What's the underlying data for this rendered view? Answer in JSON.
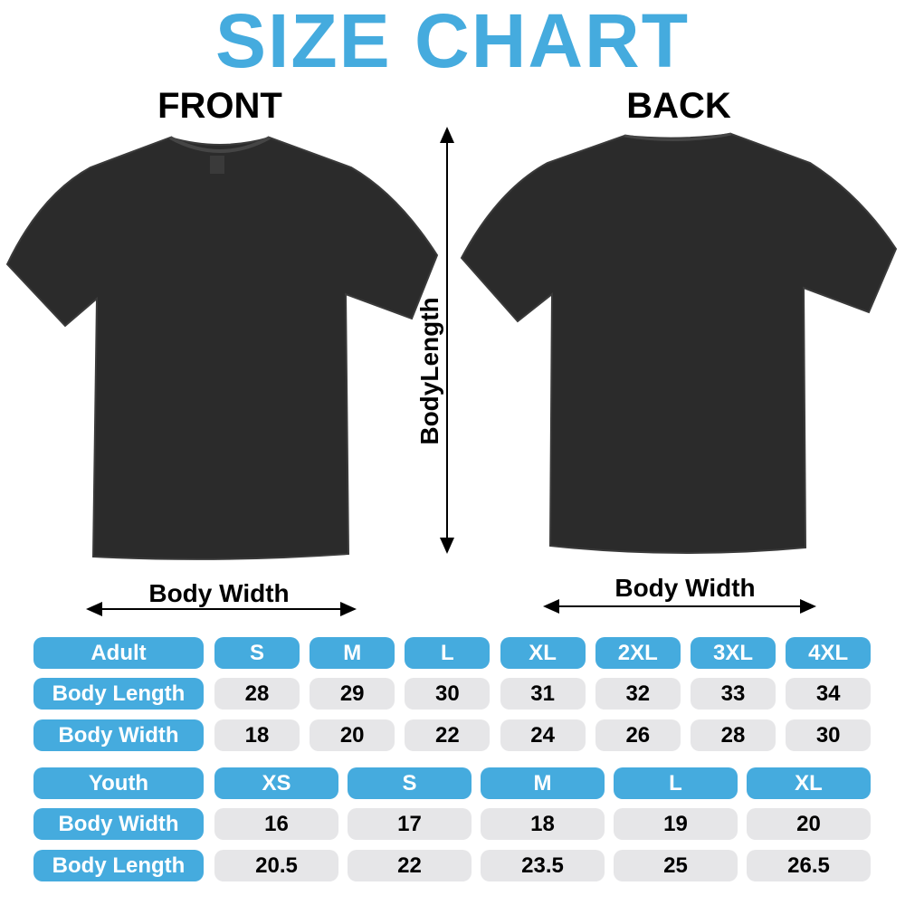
{
  "title": "SIZE CHART",
  "colors": {
    "accent": "#45abde",
    "cell_gray": "#e6e6e8",
    "shirt": "#2b2b2b"
  },
  "front_label": "FRONT",
  "back_label": "BACK",
  "body_length_label": "BodyLength",
  "body_width_label_front": "Body Width",
  "body_width_label_back": "Body Width",
  "adult": {
    "header": "Adult",
    "sizes": [
      "S",
      "M",
      "L",
      "XL",
      "2XL",
      "3XL",
      "4XL"
    ],
    "rows": [
      {
        "label": "Body Length",
        "values": [
          "28",
          "29",
          "30",
          "31",
          "32",
          "33",
          "34"
        ]
      },
      {
        "label": "Body Width",
        "values": [
          "18",
          "20",
          "22",
          "24",
          "26",
          "28",
          "30"
        ]
      }
    ]
  },
  "youth": {
    "header": "Youth",
    "sizes": [
      "XS",
      "S",
      "M",
      "L",
      "XL"
    ],
    "rows": [
      {
        "label": "Body Width",
        "values": [
          "16",
          "17",
          "18",
          "19",
          "20"
        ]
      },
      {
        "label": "Body Length",
        "values": [
          "20.5",
          "22",
          "23.5",
          "25",
          "26.5"
        ]
      }
    ]
  }
}
